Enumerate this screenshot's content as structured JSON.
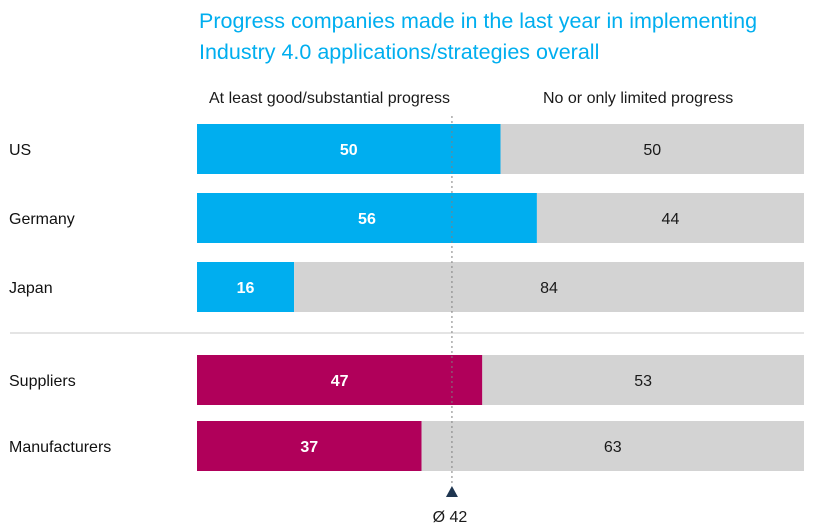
{
  "title_lines": [
    "Progress companies made in the last year in implementing",
    "Industry 4.0 applications/strategies overall"
  ],
  "legend": {
    "left": "At least good/substantial progress",
    "right": "No or only limited progress"
  },
  "average_label": "Ø 42",
  "colors": {
    "title": "#00aeef",
    "country_bar": "#00aeef",
    "company_bar": "#b0005a",
    "rest_bar": "#d3d3d3"
  },
  "chart_data": {
    "type": "bar",
    "orientation": "horizontal",
    "stacked": true,
    "xlim": [
      0,
      100
    ],
    "average": 42,
    "series": [
      {
        "name": "At least good/substantial progress",
        "values": [
          50,
          56,
          16,
          47,
          37
        ]
      },
      {
        "name": "No or only limited progress",
        "values": [
          50,
          44,
          84,
          53,
          63
        ]
      }
    ],
    "categories": [
      "US",
      "Germany",
      "Japan",
      "Suppliers",
      "Manufacturers"
    ],
    "groups": [
      {
        "categories": [
          "US",
          "Germany",
          "Japan"
        ],
        "bar_color": "#00aeef"
      },
      {
        "categories": [
          "Suppliers",
          "Manufacturers"
        ],
        "bar_color": "#b0005a"
      }
    ]
  }
}
